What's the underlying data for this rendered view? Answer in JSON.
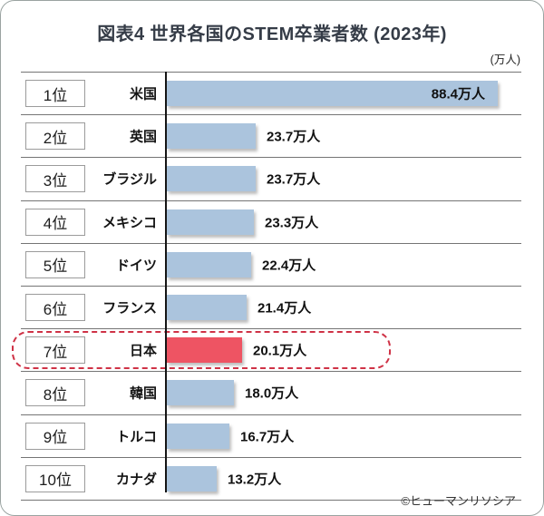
{
  "header": {
    "title": "図表4 世界各国のSTEM卒業者数 (2023年)",
    "unit_label": "(万人)"
  },
  "footer": {
    "copyright": "©ヒューマンリソシア"
  },
  "chart_data": {
    "type": "bar",
    "orientation": "horizontal",
    "title": "図表4 世界各国のSTEM卒業者数 (2023年)",
    "unit": "万人",
    "xlim": [
      0,
      90
    ],
    "grid": false,
    "legend": false,
    "bar_color": "#abc4dd",
    "highlight_bar_color": "#ee5463",
    "highlight_border_color": "#cf3246",
    "categories": [
      "米国",
      "英国",
      "ブラジル",
      "メキシコ",
      "ドイツ",
      "フランス",
      "日本",
      "韓国",
      "トルコ",
      "カナダ"
    ],
    "values": [
      88.4,
      23.7,
      23.7,
      23.3,
      22.4,
      21.4,
      20.1,
      18.0,
      16.7,
      13.2
    ],
    "rows": [
      {
        "rank": "1位",
        "country": "米国",
        "value": 88.4,
        "value_label": "88.4万人",
        "highlighted": false
      },
      {
        "rank": "2位",
        "country": "英国",
        "value": 23.7,
        "value_label": "23.7万人",
        "highlighted": false
      },
      {
        "rank": "3位",
        "country": "ブラジル",
        "value": 23.7,
        "value_label": "23.7万人",
        "highlighted": false
      },
      {
        "rank": "4位",
        "country": "メキシコ",
        "value": 23.3,
        "value_label": "23.3万人",
        "highlighted": false
      },
      {
        "rank": "5位",
        "country": "ドイツ",
        "value": 22.4,
        "value_label": "22.4万人",
        "highlighted": false
      },
      {
        "rank": "6位",
        "country": "フランス",
        "value": 21.4,
        "value_label": "21.4万人",
        "highlighted": false
      },
      {
        "rank": "7位",
        "country": "日本",
        "value": 20.1,
        "value_label": "20.1万人",
        "highlighted": true
      },
      {
        "rank": "8位",
        "country": "韓国",
        "value": 18.0,
        "value_label": "18.0万人",
        "highlighted": false
      },
      {
        "rank": "9位",
        "country": "トルコ",
        "value": 16.7,
        "value_label": "16.7万人",
        "highlighted": false
      },
      {
        "rank": "10位",
        "country": "カナダ",
        "value": 13.2,
        "value_label": "13.2万人",
        "highlighted": false
      }
    ]
  }
}
